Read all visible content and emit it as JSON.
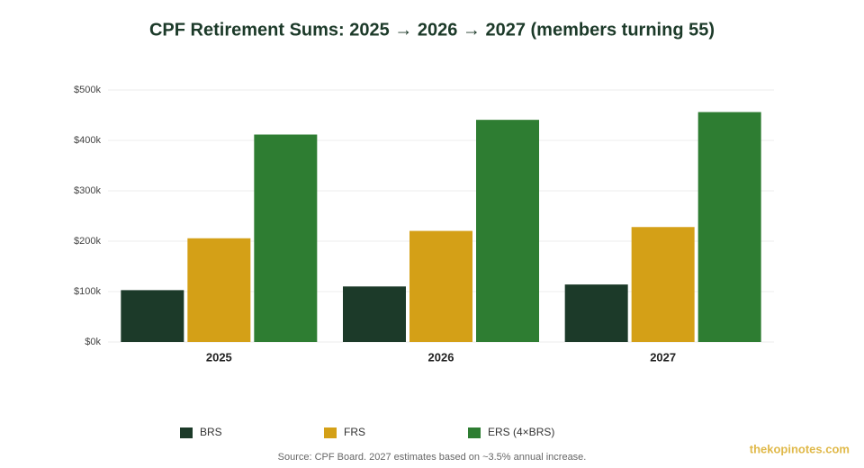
{
  "chart_data": {
    "type": "bar",
    "title": "CPF Retirement Sums: 2025 → 2026 → 2027 (members turning 55)",
    "categories": [
      "2025",
      "2026",
      "2027"
    ],
    "series": [
      {
        "name": "BRS",
        "color": "#1c3a29",
        "values": [
          102900,
          110200,
          114100
        ]
      },
      {
        "name": "FRS",
        "color": "#d4a017",
        "values": [
          205800,
          220400,
          228100
        ]
      },
      {
        "name": "ERS (4×BRS)",
        "color": "#2e7d32",
        "values": [
          411600,
          440800,
          456200
        ]
      }
    ],
    "ylim": [
      0,
      500000
    ],
    "yticks": [
      {
        "value": 0,
        "label": "$0k"
      },
      {
        "value": 100000,
        "label": "$100k"
      },
      {
        "value": 200000,
        "label": "$200k"
      },
      {
        "value": 300000,
        "label": "$300k"
      },
      {
        "value": 400000,
        "label": "$400k"
      },
      {
        "value": 500000,
        "label": "$500k"
      }
    ],
    "grid": true,
    "legend": "bottom",
    "source": "Source: CPF Board. 2027 estimates based on ~3.5% annual increase.",
    "watermark": "thekopinotes.com"
  }
}
